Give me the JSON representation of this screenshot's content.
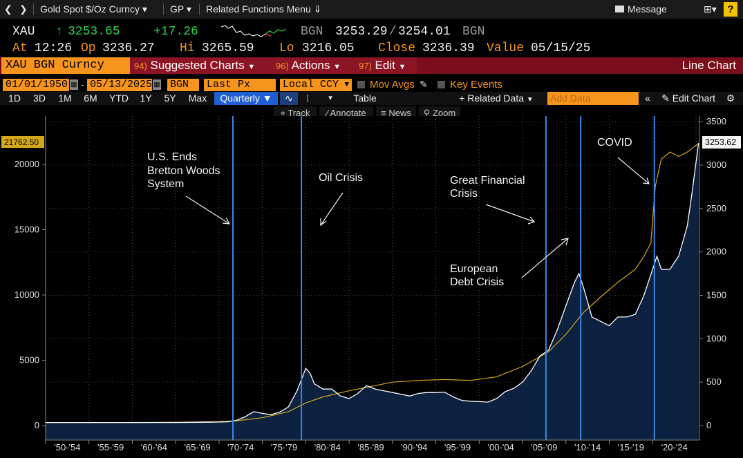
{
  "topbar": {
    "security": "Gold Spot $/Oz Curncy",
    "gp": "GP",
    "related": "Related Functions Menu",
    "message": "Message"
  },
  "quote": {
    "ticker": "XAU",
    "last": "3253.65",
    "change": "+17.26",
    "source": "BGN",
    "bid": "3253.29",
    "ask": "3254.01",
    "source2": "BGN",
    "at_label": "At",
    "time": "12:26",
    "open_label": "Op",
    "open": "3236.27",
    "hi_label": "Hi",
    "hi": "3265.59",
    "lo_label": "Lo",
    "lo": "3216.05",
    "close_label": "Close",
    "close": "3236.39",
    "value_label": "Value",
    "value_date": "05/15/25"
  },
  "redbar": {
    "security": "XAU BGN Curncy",
    "suggested_num": "94)",
    "suggested": "Suggested Charts",
    "actions_num": "96)",
    "actions": "Actions",
    "edit_num": "97)",
    "edit": "Edit",
    "title": "Line Chart"
  },
  "controls": {
    "start_date": "01/01/1950",
    "end_date": "05/13/2025",
    "source": "BGN",
    "field": "Last Px",
    "currency": "Local CCY",
    "mov_avgs": "Mov Avgs",
    "key_events": "Key Events"
  },
  "timeframes": [
    "1D",
    "3D",
    "1M",
    "6M",
    "YTD",
    "1Y",
    "5Y",
    "Max"
  ],
  "period": "Quarterly",
  "table_label": "Table",
  "related_data": "Related Data",
  "add_data_placeholder": "Add Data",
  "edit_chart": "Edit Chart",
  "tools": [
    "Track",
    "Annotate",
    "News",
    "Zoom"
  ],
  "colors": {
    "orange": "#f7941d",
    "red_bar": "#7a0e1a",
    "green": "#2bd34a",
    "area_fill": "#0d2140",
    "price_line": "#ffffff",
    "avg_line": "#d4a81a",
    "event_line": "#3a86e8"
  },
  "chart_data": {
    "type": "area",
    "x_tick_labels": [
      "'50-'54",
      "'55-'59",
      "'60-'64",
      "'65-'69",
      "'70-'74",
      "'75-'79",
      "'80-'84",
      "'85-'89",
      "'90-'94",
      "'95-'99",
      "'00-'04",
      "'05-'09",
      "'10-'14",
      "'15-'19",
      "'20-'24"
    ],
    "right_axis": {
      "ticks": [
        0,
        500,
        1000,
        1500,
        2000,
        2500,
        3000,
        3500
      ],
      "ylim": [
        0,
        3500
      ]
    },
    "left_axis": {
      "ticks": [
        0,
        5000,
        10000,
        15000,
        20000
      ],
      "ylim": [
        0,
        22700
      ]
    },
    "last_price_label": "3253.62",
    "left_last_label": "21762.50",
    "series": [
      {
        "role": "price",
        "x": [
          1950,
          1955,
          1960,
          1965,
          1969,
          1971,
          1972,
          1973,
          1974,
          1975,
          1976,
          1977,
          1978,
          1979,
          1980,
          1980.5,
          1981,
          1982,
          1983,
          1984,
          1985,
          1986,
          1987,
          1988,
          1989,
          1990,
          1991,
          1992,
          1993,
          1994,
          1995,
          1996,
          1997,
          1998,
          1999,
          2000,
          2001,
          2002,
          2003,
          2004,
          2005,
          2006,
          2007,
          2008,
          2009,
          2010,
          2011,
          2011.5,
          2012,
          2013,
          2014,
          2015,
          2016,
          2017,
          2018,
          2019,
          2020,
          2020.5,
          2021,
          2022,
          2023,
          2024,
          2024.5,
          2025.3
        ],
        "y": [
          35,
          35,
          35,
          35,
          38,
          43,
          60,
          100,
          160,
          140,
          125,
          155,
          215,
          400,
          660,
          600,
          480,
          420,
          420,
          340,
          310,
          370,
          460,
          420,
          400,
          380,
          360,
          340,
          370,
          380,
          380,
          385,
          330,
          290,
          280,
          275,
          270,
          310,
          390,
          430,
          500,
          630,
          800,
          870,
          1100,
          1380,
          1650,
          1750,
          1600,
          1250,
          1200,
          1150,
          1250,
          1250,
          1280,
          1500,
          1800,
          1950,
          1800,
          1800,
          1950,
          2300,
          2650,
          3253
        ]
      },
      {
        "role": "moving_average",
        "x": [
          1950,
          1960,
          1965,
          1970,
          1972,
          1975,
          1978,
          1980,
          1982,
          1985,
          1988,
          1990,
          1993,
          1996,
          1999,
          2002,
          2005,
          2008,
          2010,
          2012,
          2014,
          2016,
          2018,
          2019,
          2019.8,
          2020.3,
          2021,
          2022,
          2023,
          2024,
          2025.3
        ],
        "y": [
          35,
          35,
          38,
          45,
          55,
          90,
          160,
          260,
          330,
          400,
          460,
          500,
          520,
          530,
          520,
          560,
          680,
          850,
          1050,
          1300,
          1480,
          1650,
          1800,
          1950,
          2100,
          2750,
          3070,
          3150,
          3100,
          3150,
          3250
        ]
      }
    ],
    "event_markers": [
      {
        "x": 1971.6,
        "label": "U.S. Ends Bretton Woods System"
      },
      {
        "x": 1979.5,
        "label": "Oil Crisis"
      },
      {
        "x": 2007.7,
        "label": "Great Financial Crisis"
      },
      {
        "x": 2011.7,
        "label": "European Debt Crisis"
      },
      {
        "x": 2020.2,
        "label": "COVID"
      }
    ]
  }
}
